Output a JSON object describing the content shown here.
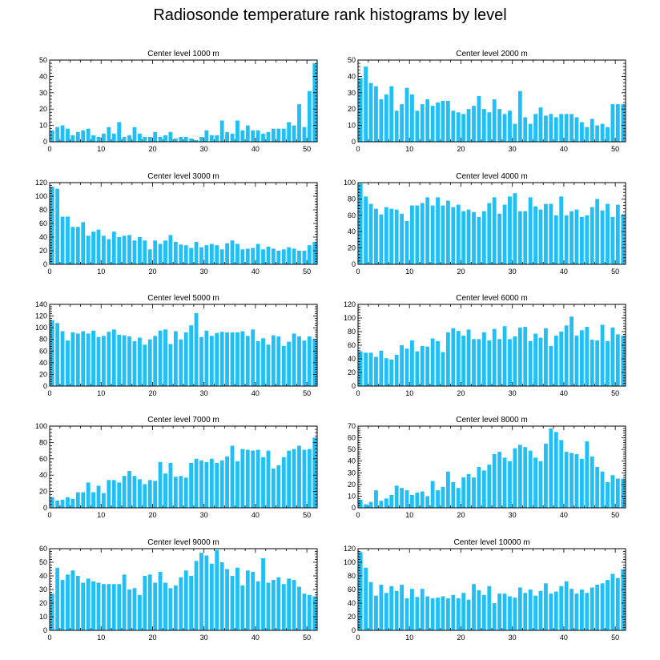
{
  "figure": {
    "title": "Radiosonde temperature rank histograms by level",
    "bar_color": "#1ec0f7",
    "axis_color": "#000000"
  },
  "chart_data": [
    {
      "type": "bar",
      "title": "Center level 1000 m",
      "xlim": [
        0,
        52
      ],
      "xticks": [
        0,
        10,
        20,
        30,
        40,
        50
      ],
      "ylim": [
        0,
        50
      ],
      "yticks": [
        0,
        10,
        20,
        30,
        40,
        50
      ],
      "x": [
        0,
        1,
        2,
        3,
        4,
        5,
        6,
        7,
        8,
        9,
        10,
        11,
        12,
        13,
        14,
        15,
        16,
        17,
        18,
        19,
        20,
        21,
        22,
        23,
        24,
        25,
        26,
        27,
        28,
        29,
        30,
        31,
        32,
        33,
        34,
        35,
        36,
        37,
        38,
        39,
        40,
        41,
        42,
        43,
        44,
        45,
        46,
        47,
        48,
        49,
        50,
        51
      ],
      "values": [
        7,
        9,
        10,
        8,
        4,
        6,
        7,
        8,
        4,
        3,
        5,
        9,
        5,
        12,
        3,
        4,
        9,
        5,
        3,
        3,
        6,
        3,
        4,
        6,
        2,
        3,
        3,
        2,
        1,
        3,
        7,
        4,
        4,
        13,
        6,
        5,
        13,
        7,
        10,
        7,
        7,
        5,
        6,
        8,
        8,
        8,
        12,
        10,
        23,
        9,
        31,
        48
      ]
    },
    {
      "type": "bar",
      "title": "Center level 2000 m",
      "xlim": [
        0,
        52
      ],
      "xticks": [
        0,
        10,
        20,
        30,
        40,
        50
      ],
      "ylim": [
        0,
        50
      ],
      "yticks": [
        0,
        10,
        20,
        30,
        40,
        50
      ],
      "x": [
        0,
        1,
        2,
        3,
        4,
        5,
        6,
        7,
        8,
        9,
        10,
        11,
        12,
        13,
        14,
        15,
        16,
        17,
        18,
        19,
        20,
        21,
        22,
        23,
        24,
        25,
        26,
        27,
        28,
        29,
        30,
        31,
        32,
        33,
        34,
        35,
        36,
        37,
        38,
        39,
        40,
        41,
        42,
        43,
        44,
        45,
        46,
        47,
        48,
        49,
        50,
        51
      ],
      "values": [
        39,
        46,
        36,
        34,
        26,
        29,
        34,
        19,
        23,
        33,
        29,
        19,
        23,
        26,
        22,
        24,
        25,
        25,
        19,
        18,
        17,
        20,
        22,
        28,
        20,
        18,
        26,
        20,
        17,
        19,
        11,
        31,
        15,
        11,
        17,
        21,
        16,
        17,
        15,
        17,
        17,
        17,
        15,
        12,
        9,
        14,
        10,
        11,
        9,
        23,
        23,
        23
      ]
    },
    {
      "type": "bar",
      "title": "Center level 3000 m",
      "xlim": [
        0,
        52
      ],
      "xticks": [
        0,
        10,
        20,
        30,
        40,
        50
      ],
      "ylim": [
        0,
        120
      ],
      "yticks": [
        0,
        20,
        40,
        60,
        80,
        100,
        120
      ],
      "x": [
        0,
        1,
        2,
        3,
        4,
        5,
        6,
        7,
        8,
        9,
        10,
        11,
        12,
        13,
        14,
        15,
        16,
        17,
        18,
        19,
        20,
        21,
        22,
        23,
        24,
        25,
        26,
        27,
        28,
        29,
        30,
        31,
        32,
        33,
        34,
        35,
        36,
        37,
        38,
        39,
        40,
        41,
        42,
        43,
        44,
        45,
        46,
        47,
        48,
        49,
        50,
        51
      ],
      "values": [
        114,
        111,
        70,
        70,
        55,
        55,
        62,
        42,
        48,
        51,
        42,
        37,
        48,
        40,
        42,
        43,
        35,
        40,
        35,
        22,
        35,
        30,
        35,
        43,
        33,
        29,
        28,
        24,
        33,
        25,
        28,
        30,
        28,
        22,
        31,
        35,
        30,
        22,
        23,
        24,
        30,
        22,
        26,
        23,
        20,
        22,
        25,
        23,
        20,
        20,
        28,
        33
      ]
    },
    {
      "type": "bar",
      "title": "Center level 4000 m",
      "xlim": [
        0,
        52
      ],
      "xticks": [
        0,
        10,
        20,
        30,
        40,
        50
      ],
      "ylim": [
        0,
        100
      ],
      "yticks": [
        0,
        20,
        40,
        60,
        80,
        100
      ],
      "x": [
        0,
        1,
        2,
        3,
        4,
        5,
        6,
        7,
        8,
        9,
        10,
        11,
        12,
        13,
        14,
        15,
        16,
        17,
        18,
        19,
        20,
        21,
        22,
        23,
        24,
        25,
        26,
        27,
        28,
        29,
        30,
        31,
        32,
        33,
        34,
        35,
        36,
        37,
        38,
        39,
        40,
        41,
        42,
        43,
        44,
        45,
        46,
        47,
        48,
        49,
        50,
        51
      ],
      "values": [
        99,
        83,
        74,
        68,
        61,
        70,
        68,
        67,
        62,
        53,
        72,
        72,
        75,
        82,
        72,
        82,
        72,
        78,
        70,
        73,
        65,
        67,
        64,
        58,
        65,
        75,
        82,
        62,
        73,
        83,
        87,
        65,
        65,
        82,
        71,
        67,
        74,
        74,
        60,
        83,
        60,
        65,
        67,
        58,
        60,
        70,
        80,
        66,
        74,
        58,
        73,
        61
      ]
    },
    {
      "type": "bar",
      "title": "Center level 5000 m",
      "xlim": [
        0,
        52
      ],
      "xticks": [
        0,
        10,
        20,
        30,
        40,
        50
      ],
      "ylim": [
        0,
        140
      ],
      "yticks": [
        0,
        20,
        40,
        60,
        80,
        100,
        120,
        140
      ],
      "x": [
        0,
        1,
        2,
        3,
        4,
        5,
        6,
        7,
        8,
        9,
        10,
        11,
        12,
        13,
        14,
        15,
        16,
        17,
        18,
        19,
        20,
        21,
        22,
        23,
        24,
        25,
        26,
        27,
        28,
        29,
        30,
        31,
        32,
        33,
        34,
        35,
        36,
        37,
        38,
        39,
        40,
        41,
        42,
        43,
        44,
        45,
        46,
        47,
        48,
        49,
        50,
        51
      ],
      "values": [
        113,
        108,
        94,
        78,
        92,
        90,
        94,
        90,
        95,
        84,
        86,
        93,
        97,
        88,
        87,
        85,
        77,
        83,
        71,
        80,
        86,
        95,
        97,
        72,
        94,
        80,
        92,
        104,
        125,
        84,
        95,
        86,
        91,
        93,
        92,
        92,
        92,
        94,
        86,
        97,
        77,
        82,
        71,
        87,
        85,
        69,
        76,
        90,
        85,
        78,
        85,
        80
      ]
    },
    {
      "type": "bar",
      "title": "Center level 6000 m",
      "xlim": [
        0,
        52
      ],
      "xticks": [
        0,
        10,
        20,
        30,
        40,
        50
      ],
      "ylim": [
        0,
        120
      ],
      "yticks": [
        0,
        20,
        40,
        60,
        80,
        100,
        120
      ],
      "x": [
        0,
        1,
        2,
        3,
        4,
        5,
        6,
        7,
        8,
        9,
        10,
        11,
        12,
        13,
        14,
        15,
        16,
        17,
        18,
        19,
        20,
        21,
        22,
        23,
        24,
        25,
        26,
        27,
        28,
        29,
        30,
        31,
        32,
        33,
        34,
        35,
        36,
        37,
        38,
        39,
        40,
        41,
        42,
        43,
        44,
        45,
        46,
        47,
        48,
        49,
        50,
        51
      ],
      "values": [
        51,
        49,
        49,
        43,
        52,
        41,
        39,
        46,
        60,
        55,
        67,
        51,
        59,
        58,
        70,
        66,
        50,
        79,
        85,
        81,
        74,
        83,
        69,
        69,
        79,
        67,
        84,
        69,
        88,
        69,
        73,
        86,
        87,
        66,
        77,
        71,
        85,
        59,
        74,
        80,
        89,
        102,
        74,
        82,
        87,
        68,
        67,
        90,
        66,
        86,
        76,
        74
      ]
    },
    {
      "type": "bar",
      "title": "Center level 7000 m",
      "xlim": [
        0,
        52
      ],
      "xticks": [
        0,
        10,
        20,
        30,
        40,
        50
      ],
      "ylim": [
        0,
        100
      ],
      "yticks": [
        0,
        20,
        40,
        60,
        80,
        100
      ],
      "x": [
        0,
        1,
        2,
        3,
        4,
        5,
        6,
        7,
        8,
        9,
        10,
        11,
        12,
        13,
        14,
        15,
        16,
        17,
        18,
        19,
        20,
        21,
        22,
        23,
        24,
        25,
        26,
        27,
        28,
        29,
        30,
        31,
        32,
        33,
        34,
        35,
        36,
        37,
        38,
        39,
        40,
        41,
        42,
        43,
        44,
        45,
        46,
        47,
        48,
        49,
        50,
        51
      ],
      "values": [
        13,
        9,
        10,
        13,
        11,
        19,
        19,
        31,
        19,
        27,
        18,
        34,
        34,
        31,
        39,
        45,
        39,
        35,
        29,
        34,
        33,
        56,
        42,
        55,
        38,
        39,
        37,
        55,
        60,
        58,
        56,
        60,
        55,
        58,
        63,
        76,
        57,
        72,
        71,
        70,
        71,
        62,
        70,
        48,
        52,
        62,
        70,
        72,
        76,
        71,
        72,
        86
      ]
    },
    {
      "type": "bar",
      "title": "Center level 8000 m",
      "xlim": [
        0,
        52
      ],
      "xticks": [
        0,
        10,
        20,
        30,
        40,
        50
      ],
      "ylim": [
        0,
        70
      ],
      "yticks": [
        0,
        10,
        20,
        30,
        40,
        50,
        60,
        70
      ],
      "x": [
        0,
        1,
        2,
        3,
        4,
        5,
        6,
        7,
        8,
        9,
        10,
        11,
        12,
        13,
        14,
        15,
        16,
        17,
        18,
        19,
        20,
        21,
        22,
        23,
        24,
        25,
        26,
        27,
        28,
        29,
        30,
        31,
        32,
        33,
        34,
        35,
        36,
        37,
        38,
        39,
        40,
        41,
        42,
        43,
        44,
        45,
        46,
        47,
        48,
        49,
        50,
        51
      ],
      "values": [
        7,
        3,
        5,
        15,
        6,
        8,
        11,
        19,
        17,
        15,
        11,
        13,
        14,
        10,
        23,
        15,
        18,
        31,
        22,
        17,
        26,
        29,
        26,
        35,
        32,
        37,
        46,
        48,
        43,
        40,
        51,
        54,
        52,
        49,
        43,
        40,
        55,
        68,
        65,
        58,
        48,
        47,
        46,
        42,
        57,
        44,
        35,
        31,
        22,
        28,
        25,
        25
      ]
    },
    {
      "type": "bar",
      "title": "Center level 9000 m",
      "xlim": [
        0,
        52
      ],
      "xticks": [
        0,
        10,
        20,
        30,
        40,
        50
      ],
      "ylim": [
        0,
        60
      ],
      "yticks": [
        0,
        10,
        20,
        30,
        40,
        50,
        60
      ],
      "x": [
        0,
        1,
        2,
        3,
        4,
        5,
        6,
        7,
        8,
        9,
        10,
        11,
        12,
        13,
        14,
        15,
        16,
        17,
        18,
        19,
        20,
        21,
        22,
        23,
        24,
        25,
        26,
        27,
        28,
        29,
        30,
        31,
        32,
        33,
        34,
        35,
        36,
        37,
        38,
        39,
        40,
        41,
        42,
        43,
        44,
        45,
        46,
        47,
        48,
        49,
        50,
        51
      ],
      "values": [
        27,
        46,
        37,
        41,
        44,
        40,
        35,
        38,
        36,
        35,
        34,
        34,
        34,
        34,
        41,
        30,
        31,
        26,
        40,
        41,
        35,
        43,
        35,
        31,
        33,
        39,
        44,
        40,
        51,
        57,
        55,
        49,
        59,
        50,
        45,
        40,
        46,
        33,
        44,
        43,
        36,
        53,
        35,
        37,
        39,
        34,
        38,
        37,
        32,
        27,
        26,
        25
      ]
    },
    {
      "type": "bar",
      "title": "Center level 10000 m",
      "xlim": [
        0,
        52
      ],
      "xticks": [
        0,
        10,
        20,
        30,
        40,
        50
      ],
      "ylim": [
        0,
        120
      ],
      "yticks": [
        0,
        20,
        40,
        60,
        80,
        100,
        120
      ],
      "x": [
        0,
        1,
        2,
        3,
        4,
        5,
        6,
        7,
        8,
        9,
        10,
        11,
        12,
        13,
        14,
        15,
        16,
        17,
        18,
        19,
        20,
        21,
        22,
        23,
        24,
        25,
        26,
        27,
        28,
        29,
        30,
        31,
        32,
        33,
        34,
        35,
        36,
        37,
        38,
        39,
        40,
        41,
        42,
        43,
        44,
        45,
        46,
        47,
        48,
        49,
        50,
        51
      ],
      "values": [
        115,
        92,
        71,
        51,
        67,
        55,
        65,
        58,
        67,
        47,
        61,
        49,
        61,
        50,
        47,
        48,
        50,
        47,
        52,
        47,
        55,
        45,
        68,
        59,
        52,
        65,
        40,
        54,
        54,
        50,
        48,
        63,
        55,
        60,
        51,
        58,
        69,
        54,
        57,
        65,
        72,
        61,
        54,
        60,
        55,
        63,
        67,
        69,
        74,
        83,
        77,
        90
      ]
    }
  ]
}
